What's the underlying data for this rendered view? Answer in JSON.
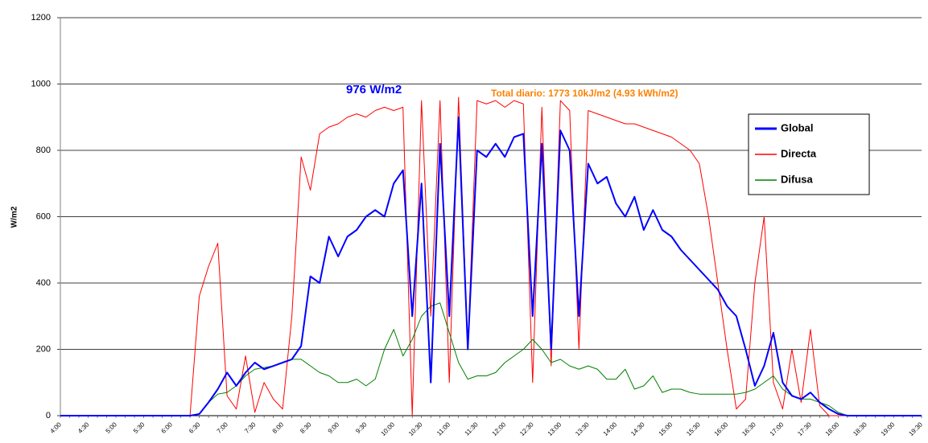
{
  "chart_data": {
    "type": "line",
    "y_label": "W/m2",
    "annotations": [
      "976  W/m2",
      "Total diario:  1773  10kJ/m2  (4.93 kWh/m2)"
    ],
    "categories": [
      "4:00",
      null,
      null,
      "4:30",
      null,
      null,
      "5:00",
      null,
      null,
      "5:30",
      null,
      null,
      "6:00",
      null,
      null,
      "6:30",
      null,
      null,
      "7:00",
      null,
      null,
      "7:30",
      null,
      null,
      "8:00",
      null,
      null,
      "8:30",
      null,
      null,
      "9:00",
      null,
      null,
      "9:30",
      null,
      null,
      "10:00",
      null,
      null,
      "10:30",
      null,
      null,
      "11:00",
      null,
      null,
      "11:30",
      null,
      null,
      "12:00",
      null,
      null,
      "12:30",
      null,
      null,
      "13:00",
      null,
      null,
      "13:30",
      null,
      null,
      "14:00",
      null,
      null,
      "14:30",
      null,
      null,
      "15:00",
      null,
      null,
      "15:30",
      null,
      null,
      "16:00",
      null,
      null,
      "16:30",
      null,
      null,
      "17:00",
      null,
      null,
      "17:30",
      null,
      null,
      "18:00",
      null,
      null,
      "18:30",
      null,
      null,
      "19:00",
      null,
      null,
      "19:30"
    ],
    "series": [
      {
        "name": "Global",
        "color": "#0000ff",
        "values": [
          0,
          0,
          0,
          0,
          0,
          0,
          0,
          0,
          0,
          0,
          0,
          0,
          0,
          0,
          0,
          5,
          40,
          80,
          130,
          90,
          130,
          160,
          140,
          150,
          160,
          170,
          210,
          420,
          400,
          540,
          480,
          540,
          560,
          600,
          620,
          600,
          700,
          740,
          300,
          700,
          100,
          820,
          300,
          900,
          200,
          800,
          780,
          820,
          780,
          840,
          850,
          300,
          820,
          200,
          860,
          800,
          300,
          760,
          700,
          720,
          640,
          600,
          660,
          560,
          620,
          560,
          540,
          500,
          470,
          440,
          410,
          380,
          330,
          300,
          200,
          90,
          150,
          250,
          100,
          60,
          50,
          70,
          40,
          20,
          5,
          0,
          0,
          0,
          0,
          0,
          0,
          0,
          0,
          0
        ]
      },
      {
        "name": "Directa",
        "color": "#ff0000",
        "values": [
          0,
          0,
          0,
          0,
          0,
          0,
          0,
          0,
          0,
          0,
          0,
          0,
          0,
          0,
          0,
          360,
          450,
          520,
          60,
          20,
          180,
          10,
          100,
          50,
          20,
          300,
          780,
          680,
          850,
          870,
          880,
          900,
          910,
          900,
          920,
          930,
          920,
          930,
          0,
          950,
          300,
          950,
          100,
          960,
          200,
          950,
          940,
          950,
          930,
          950,
          940,
          100,
          930,
          150,
          950,
          920,
          200,
          920,
          910,
          900,
          890,
          880,
          880,
          870,
          860,
          850,
          840,
          820,
          800,
          760,
          600,
          400,
          200,
          20,
          50,
          400,
          600,
          100,
          20,
          200,
          40,
          260,
          30,
          0,
          0,
          0,
          0,
          0,
          0,
          0,
          0,
          0,
          0,
          0
        ]
      },
      {
        "name": "Difusa",
        "color": "#008000",
        "values": [
          0,
          0,
          0,
          0,
          0,
          0,
          0,
          0,
          0,
          0,
          0,
          0,
          0,
          0,
          0,
          5,
          40,
          65,
          70,
          90,
          120,
          140,
          145,
          150,
          160,
          170,
          170,
          150,
          130,
          120,
          100,
          100,
          110,
          90,
          110,
          200,
          260,
          180,
          230,
          300,
          330,
          340,
          250,
          160,
          110,
          120,
          120,
          130,
          160,
          180,
          200,
          230,
          200,
          160,
          170,
          150,
          140,
          150,
          140,
          110,
          110,
          140,
          80,
          90,
          120,
          70,
          80,
          80,
          70,
          65,
          65,
          65,
          65,
          65,
          70,
          80,
          100,
          120,
          80,
          60,
          50,
          50,
          40,
          30,
          10,
          0,
          0,
          0,
          0,
          0,
          0,
          0,
          0,
          0
        ]
      }
    ],
    "ylim": [
      0,
      1200
    ],
    "yticks": [
      0,
      200,
      400,
      600,
      800,
      1000,
      1200
    ],
    "grid": true
  }
}
